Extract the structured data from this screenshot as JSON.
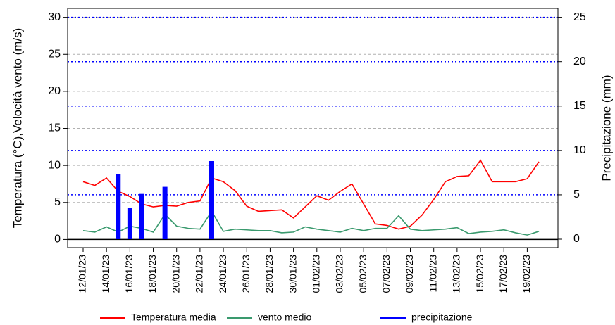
{
  "chart_data": {
    "type": "line",
    "categories": [
      "12/01/23",
      null,
      "14/01/23",
      null,
      "16/01/23",
      null,
      "18/01/23",
      null,
      "20/01/23",
      null,
      "22/01/23",
      null,
      "24/01/23",
      null,
      "26/01/23",
      null,
      "28/01/23",
      null,
      "30/01/23",
      null,
      "01/02/23",
      null,
      "03/02/23",
      null,
      "05/02/23",
      null,
      "07/02/23",
      null,
      "09/02/23",
      null,
      "11/02/23",
      null,
      "13/02/23",
      null,
      "15/02/23",
      null,
      "17/02/23",
      null,
      "19/02/23",
      null
    ],
    "y_label": "Temperatura (°C),Velocità vento (m/s)",
    "y2_label": "Precipitazione (mm)",
    "ylim": [
      -1.1,
      31.2
    ],
    "yticks": [
      0,
      5,
      10,
      15,
      20,
      25,
      30
    ],
    "y2lim": [
      -0.95,
      26.0
    ],
    "y2ticks": [
      0,
      5,
      10,
      15,
      20,
      25
    ],
    "grid": true,
    "legend": "bottom",
    "series": [
      {
        "name": "Temperatura media",
        "color": "#ff0000",
        "type": "line",
        "values": [
          7.8,
          7.3,
          8.3,
          6.5,
          5.8,
          4.8,
          4.4,
          4.6,
          4.5,
          5.0,
          5.2,
          8.3,
          7.8,
          6.6,
          4.5,
          3.8,
          3.9,
          4.0,
          2.9,
          4.4,
          5.9,
          5.3,
          6.5,
          7.5,
          4.8,
          2.1,
          1.9,
          1.4,
          1.8,
          3.3,
          5.4,
          7.8,
          8.5,
          8.6,
          10.7,
          7.8,
          7.8,
          7.8,
          8.2,
          10.5
        ]
      },
      {
        "name": "vento medio",
        "color": "#3a9a6e",
        "type": "line",
        "values": [
          1.2,
          1.0,
          1.7,
          1.0,
          1.8,
          1.5,
          1.0,
          3.4,
          1.8,
          1.5,
          1.4,
          3.8,
          1.1,
          1.4,
          1.3,
          1.2,
          1.2,
          0.9,
          1.0,
          1.7,
          1.4,
          1.2,
          1.0,
          1.5,
          1.2,
          1.5,
          1.5,
          3.2,
          1.4,
          1.2,
          1.3,
          1.4,
          1.6,
          0.8,
          1.0,
          1.1,
          1.3,
          0.9,
          0.6,
          1.1
        ]
      },
      {
        "name": "precipitazione",
        "color": "#0000ff",
        "type": "bar",
        "axis": "y2",
        "values": [
          0,
          0,
          0,
          7.3,
          3.5,
          5.1,
          0,
          5.9,
          0,
          0,
          0,
          8.8,
          0,
          0,
          0,
          0,
          0,
          0,
          0,
          0,
          0,
          0,
          0,
          0,
          0,
          0,
          0,
          0,
          0,
          0,
          0,
          0,
          0,
          0,
          0,
          0,
          0,
          0,
          0,
          0
        ]
      }
    ]
  }
}
